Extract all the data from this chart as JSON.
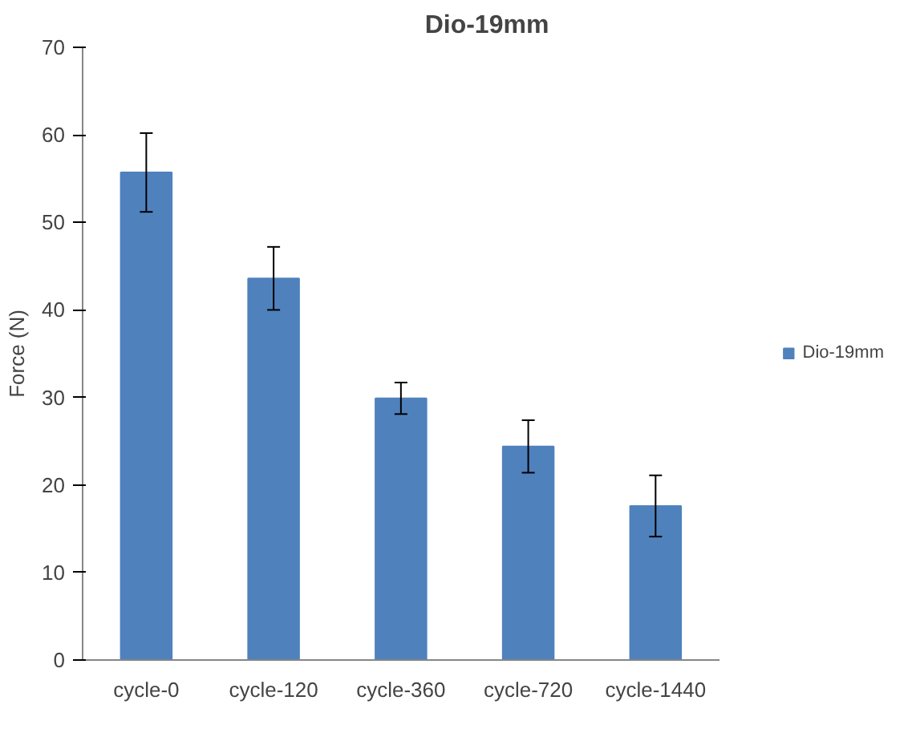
{
  "chart_data": {
    "type": "bar",
    "title": "Dio-19mm",
    "ylabel": "Force (N)",
    "categories": [
      "cycle-0",
      "cycle-120",
      "cycle-360",
      "cycle-720",
      "cycle-1440"
    ],
    "series": [
      {
        "name": "Dio-19mm",
        "color": "#4f81bd",
        "values": [
          55.7,
          43.6,
          29.9,
          24.4,
          17.6
        ],
        "errors": [
          4.5,
          3.6,
          1.8,
          3.0,
          3.5
        ]
      }
    ],
    "ylim": [
      0,
      70
    ],
    "yticks": [
      0,
      10,
      20,
      30,
      40,
      50,
      60,
      70
    ],
    "grid": false,
    "legend": "right"
  }
}
